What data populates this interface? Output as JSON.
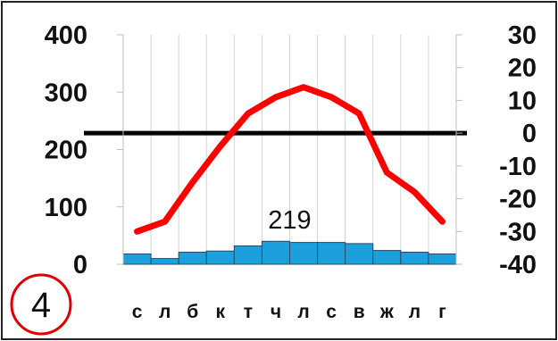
{
  "chart_data": {
    "type": "bar+line",
    "categories": [
      "с",
      "л",
      "б",
      "к",
      "т",
      "ч",
      "л",
      "с",
      "в",
      "ж",
      "л",
      "г"
    ],
    "precipitation": {
      "axis": "left",
      "ylim": [
        0,
        400
      ],
      "yticks": [
        0,
        100,
        200,
        300,
        400
      ],
      "values": [
        18,
        10,
        21,
        23,
        32,
        40,
        38,
        38,
        36,
        24,
        21,
        18
      ],
      "color": "#1ca0dd"
    },
    "temperature": {
      "axis": "right",
      "ylim": [
        -40,
        30
      ],
      "yticks": [
        -40,
        -30,
        -20,
        -10,
        0,
        10,
        20,
        30
      ],
      "values": [
        -30,
        -27,
        -15,
        -4,
        6,
        11,
        14,
        11,
        6,
        -12,
        -18,
        -27
      ],
      "color": "#ff0000"
    },
    "zero_line_value": 0,
    "annotation": "219",
    "badge": "4",
    "grid": "vertical"
  }
}
